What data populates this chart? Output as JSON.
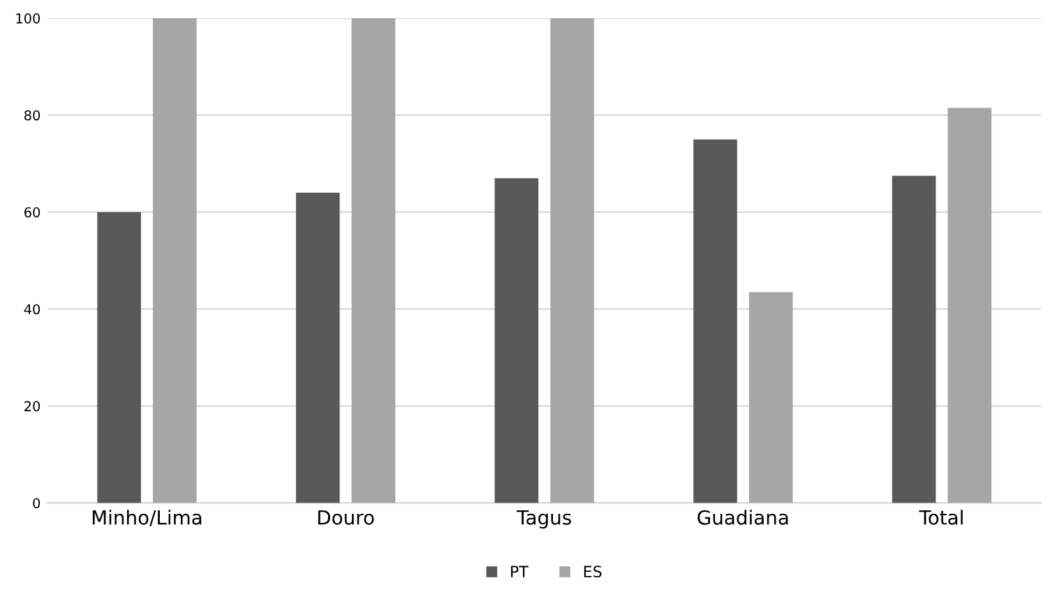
{
  "chart_data": {
    "type": "bar",
    "categories": [
      "Minho/Lima",
      "Douro",
      "Tagus",
      "Guadiana",
      "Total"
    ],
    "series": [
      {
        "name": "PT",
        "color": "#595959",
        "values": [
          60,
          64,
          67,
          75,
          67.5
        ]
      },
      {
        "name": "ES",
        "color": "#a6a6a6",
        "values": [
          100,
          100,
          100,
          43.5,
          81.5
        ]
      }
    ],
    "ylim": [
      0,
      100
    ],
    "yticks": [
      0,
      20,
      40,
      60,
      80,
      100
    ],
    "grid": "y",
    "legend": "bottom"
  }
}
